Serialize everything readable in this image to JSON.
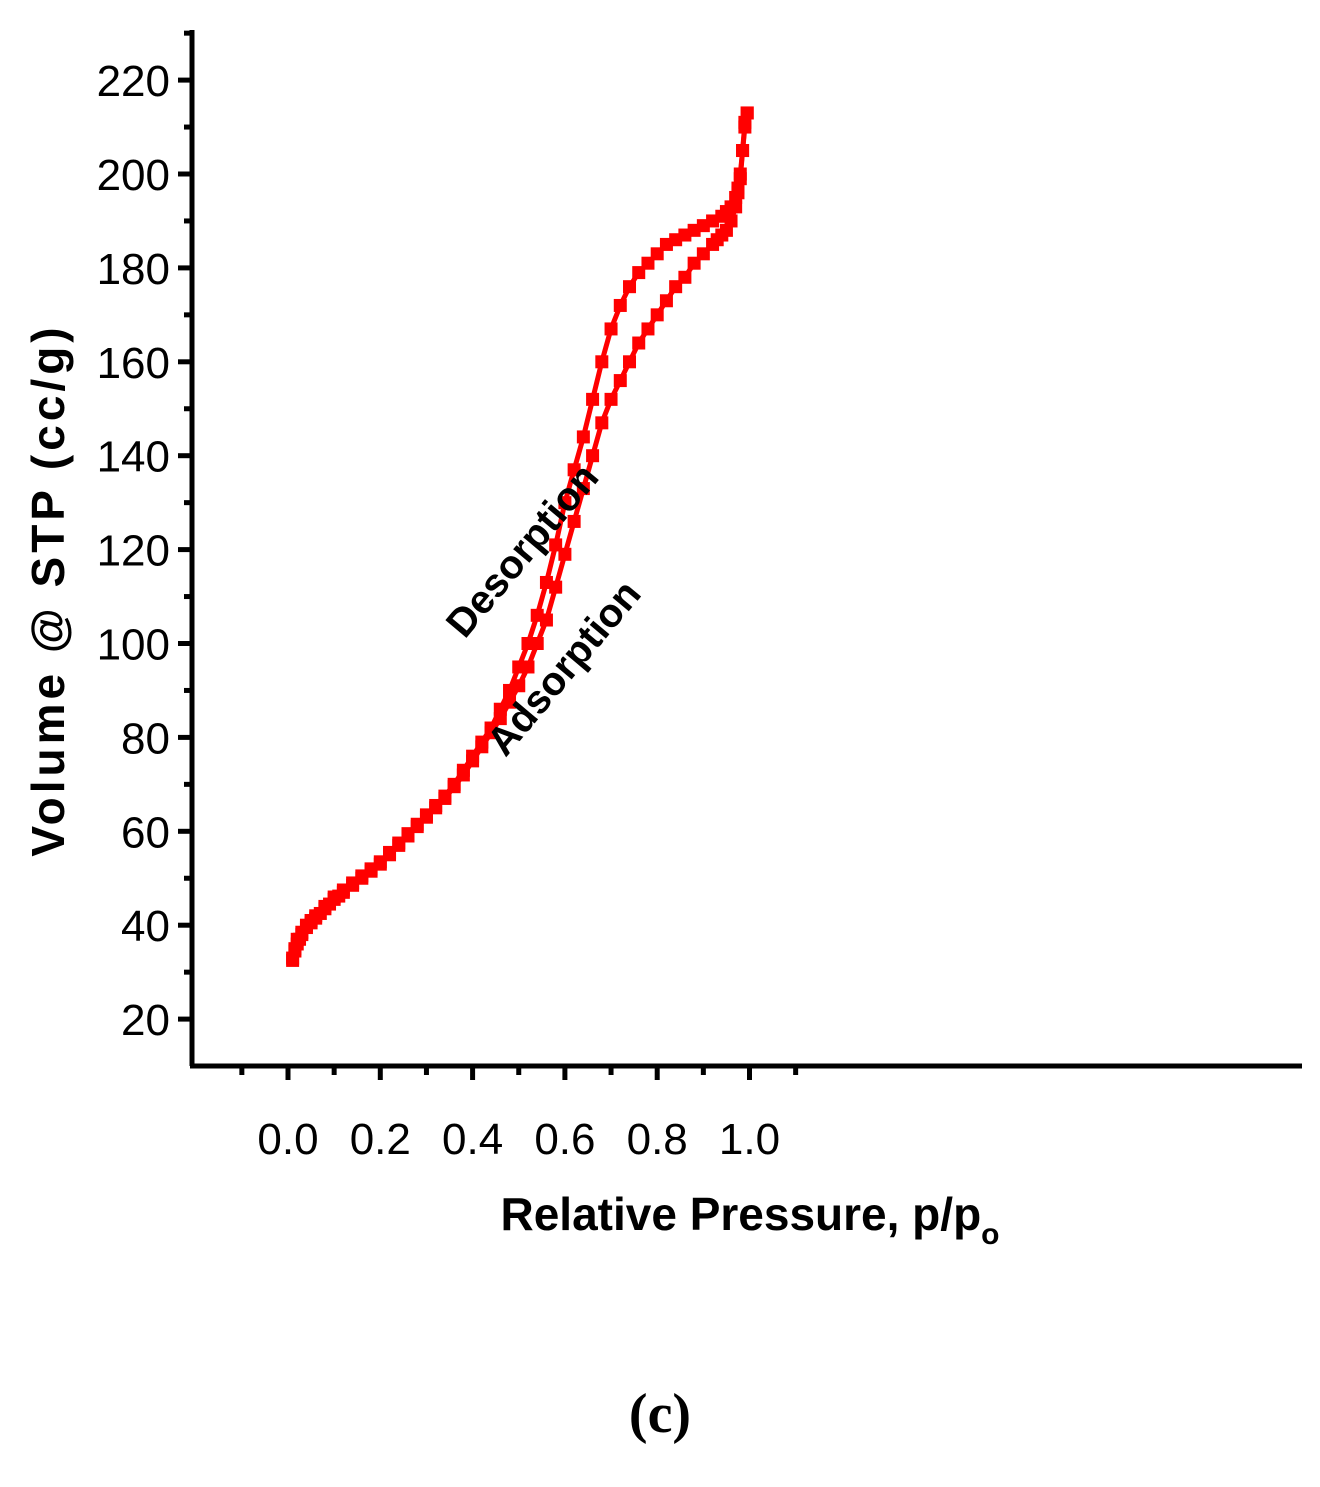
{
  "chart_data": {
    "type": "line",
    "xlabel_main": "Relative Pressure, p/p",
    "xlabel_sub": "o",
    "ylabel": "Volume @ STP (cc/g)",
    "xlim": [
      -0.1,
      1.1
    ],
    "ylim": [
      10,
      230
    ],
    "x_ticks": [
      0.0,
      0.2,
      0.4,
      0.6,
      0.8,
      1.0
    ],
    "x_tick_labels": [
      "0.0",
      "0.2",
      "0.4",
      "0.6",
      "0.8",
      "1.0"
    ],
    "y_ticks": [
      20,
      40,
      60,
      80,
      100,
      120,
      140,
      160,
      180,
      200,
      220
    ],
    "y_tick_labels": [
      "20",
      "40",
      "60",
      "80",
      "100",
      "120",
      "140",
      "160",
      "180",
      "200",
      "220"
    ],
    "grid": false,
    "legend": "none",
    "annotations": [
      {
        "text": "Desorption",
        "x": 0.53,
        "y": 118,
        "angle": -50
      },
      {
        "text": "Adsorption",
        "x": 0.62,
        "y": 93,
        "angle": -50
      }
    ],
    "panel_label": "(c)",
    "series": [
      {
        "role": "adsorption",
        "color": "#ff0000",
        "points": [
          [
            0.01,
            32.5
          ],
          [
            0.015,
            34.5
          ],
          [
            0.02,
            36
          ],
          [
            0.025,
            37
          ],
          [
            0.03,
            38
          ],
          [
            0.04,
            39.5
          ],
          [
            0.05,
            40.5
          ],
          [
            0.06,
            41.5
          ],
          [
            0.07,
            42.5
          ],
          [
            0.08,
            43.5
          ],
          [
            0.09,
            44.5
          ],
          [
            0.1,
            45.5
          ],
          [
            0.11,
            46.2
          ],
          [
            0.12,
            47
          ],
          [
            0.14,
            48.5
          ],
          [
            0.16,
            50
          ],
          [
            0.18,
            51.5
          ],
          [
            0.2,
            53
          ],
          [
            0.22,
            55
          ],
          [
            0.24,
            57
          ],
          [
            0.26,
            59
          ],
          [
            0.28,
            61
          ],
          [
            0.3,
            63
          ],
          [
            0.32,
            65
          ],
          [
            0.34,
            67
          ],
          [
            0.36,
            69.5
          ],
          [
            0.38,
            72
          ],
          [
            0.4,
            75
          ],
          [
            0.42,
            78
          ],
          [
            0.44,
            81
          ],
          [
            0.46,
            84
          ],
          [
            0.48,
            87.5
          ],
          [
            0.5,
            91
          ],
          [
            0.52,
            95
          ],
          [
            0.54,
            100
          ],
          [
            0.56,
            105
          ],
          [
            0.58,
            112
          ],
          [
            0.6,
            119
          ],
          [
            0.62,
            126
          ],
          [
            0.64,
            133
          ],
          [
            0.66,
            140
          ],
          [
            0.68,
            147
          ],
          [
            0.7,
            152
          ],
          [
            0.72,
            156
          ],
          [
            0.74,
            160
          ],
          [
            0.76,
            164
          ],
          [
            0.78,
            167
          ],
          [
            0.8,
            170
          ],
          [
            0.82,
            173
          ],
          [
            0.84,
            176
          ],
          [
            0.86,
            178
          ],
          [
            0.88,
            181
          ],
          [
            0.9,
            183
          ],
          [
            0.92,
            185
          ],
          [
            0.93,
            186
          ],
          [
            0.94,
            187
          ],
          [
            0.95,
            188
          ],
          [
            0.96,
            190
          ],
          [
            0.97,
            193
          ],
          [
            0.975,
            196
          ],
          [
            0.98,
            200
          ],
          [
            0.985,
            205
          ],
          [
            0.99,
            210
          ],
          [
            0.995,
            213
          ]
        ]
      },
      {
        "role": "desorption",
        "color": "#ff0000",
        "points": [
          [
            0.995,
            213
          ],
          [
            0.99,
            211
          ],
          [
            0.985,
            205
          ],
          [
            0.98,
            199
          ],
          [
            0.975,
            197
          ],
          [
            0.97,
            195
          ],
          [
            0.96,
            193
          ],
          [
            0.95,
            192
          ],
          [
            0.94,
            191
          ],
          [
            0.92,
            190
          ],
          [
            0.9,
            189
          ],
          [
            0.88,
            188
          ],
          [
            0.86,
            187
          ],
          [
            0.84,
            186
          ],
          [
            0.82,
            185
          ],
          [
            0.8,
            183
          ],
          [
            0.78,
            181
          ],
          [
            0.76,
            179
          ],
          [
            0.74,
            176
          ],
          [
            0.72,
            172
          ],
          [
            0.7,
            167
          ],
          [
            0.68,
            160
          ],
          [
            0.66,
            152
          ],
          [
            0.64,
            144
          ],
          [
            0.62,
            137
          ],
          [
            0.6,
            130
          ],
          [
            0.58,
            121
          ],
          [
            0.56,
            113
          ],
          [
            0.54,
            106
          ],
          [
            0.52,
            100
          ],
          [
            0.5,
            95
          ],
          [
            0.48,
            90
          ],
          [
            0.46,
            86
          ],
          [
            0.44,
            82
          ],
          [
            0.42,
            79
          ],
          [
            0.4,
            76
          ],
          [
            0.38,
            73
          ],
          [
            0.36,
            70
          ],
          [
            0.34,
            67.5
          ],
          [
            0.32,
            65.5
          ],
          [
            0.3,
            63.5
          ],
          [
            0.28,
            61.5
          ],
          [
            0.26,
            59.5
          ],
          [
            0.24,
            57.5
          ],
          [
            0.22,
            55.5
          ],
          [
            0.2,
            53.5
          ],
          [
            0.18,
            52
          ],
          [
            0.16,
            50.5
          ],
          [
            0.14,
            49
          ],
          [
            0.12,
            47.5
          ],
          [
            0.1,
            46
          ],
          [
            0.08,
            44
          ],
          [
            0.06,
            42
          ],
          [
            0.05,
            41
          ],
          [
            0.04,
            40
          ],
          [
            0.03,
            38.5
          ],
          [
            0.02,
            37
          ],
          [
            0.015,
            35
          ],
          [
            0.01,
            33
          ]
        ]
      }
    ]
  }
}
